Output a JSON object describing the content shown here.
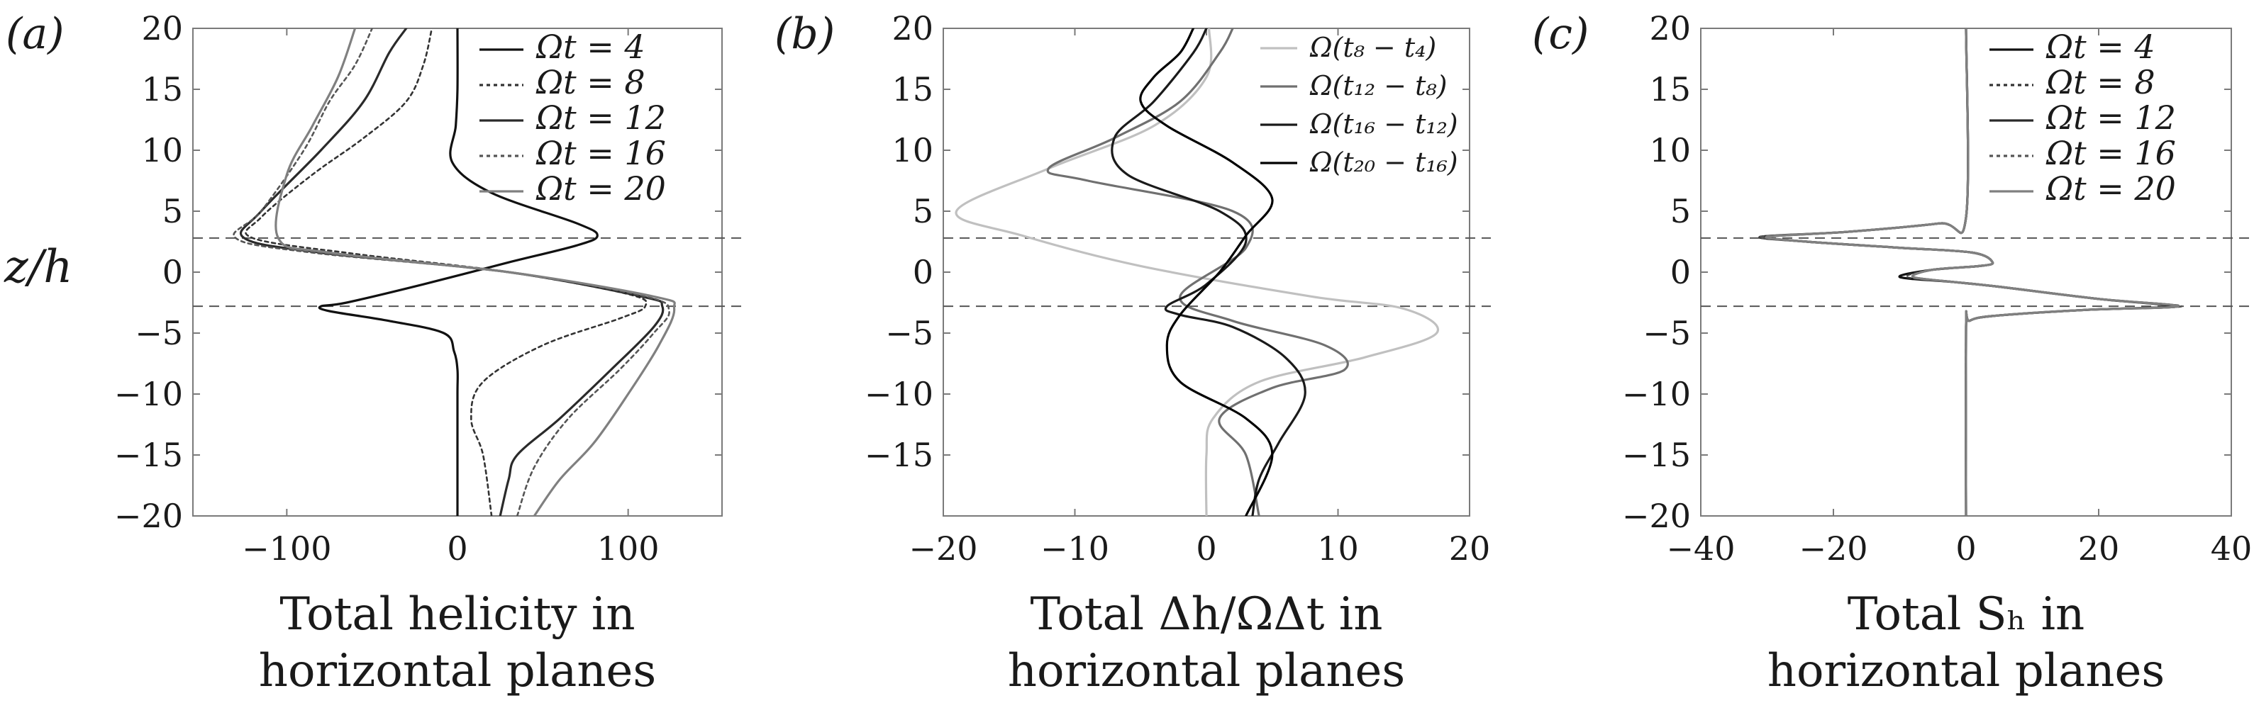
{
  "figure": {
    "ylabel": "z/h",
    "dashed_lines_y": [
      2.8,
      -2.8
    ]
  },
  "chart_data": [
    {
      "type": "line",
      "panel_label": "(a)",
      "xlabel_lines": [
        "Total helicity in",
        "horizontal planes"
      ],
      "xlim": [
        -155,
        155
      ],
      "ylim": [
        -20,
        20
      ],
      "xticks": [
        -100,
        0,
        100
      ],
      "xtick_labels": [
        "−100",
        "0",
        "100"
      ],
      "yticks": [
        20,
        15,
        10,
        5,
        0,
        -5,
        -10,
        -15,
        -20
      ],
      "ytick_labels": [
        "20",
        "15",
        "10",
        "5",
        "0",
        "−5",
        "−10",
        "−15",
        "−20"
      ],
      "legend": "top-right",
      "series": [
        {
          "name": "Ωt = 4",
          "color": "#111111",
          "dash": "solid",
          "x": [
            0,
            0,
            0,
            0,
            0,
            -2,
            -8,
            -40,
            -75,
            -80,
            -65,
            -20,
            30,
            70,
            82,
            70,
            20,
            -3,
            -1,
            0,
            0
          ],
          "y": [
            -20,
            -17,
            -15,
            -10,
            -8,
            -6.5,
            -5,
            -4,
            -3.2,
            -2.8,
            -2.5,
            -1,
            0.8,
            2.2,
            3.0,
            4.0,
            6.5,
            9,
            12,
            15,
            20
          ]
        },
        {
          "name": "Ωt = 8",
          "color": "#333333",
          "dash": "dotted",
          "x": [
            20,
            15,
            8,
            15,
            50,
            95,
            110,
            100,
            30,
            -60,
            -120,
            -115,
            -85,
            -55,
            -30,
            -20,
            -15
          ],
          "y": [
            -20,
            -15,
            -12,
            -9,
            -6,
            -3.8,
            -2.8,
            -1.8,
            0,
            1.5,
            2.8,
            4.5,
            8,
            11,
            14,
            17,
            20
          ]
        },
        {
          "name": "Ωt = 12",
          "color": "#2a2a2a",
          "dash": "solid",
          "x": [
            25,
            30,
            35,
            60,
            90,
            115,
            120,
            108,
            30,
            -80,
            -125,
            -115,
            -80,
            -55,
            -40,
            -30
          ],
          "y": [
            -20,
            -17,
            -15,
            -12,
            -8,
            -4.5,
            -2.8,
            -2.0,
            0,
            1.6,
            2.8,
            5,
            10,
            14,
            18,
            20
          ]
        },
        {
          "name": "Ωt = 16",
          "color": "#555555",
          "dash": "dotted",
          "x": [
            35,
            45,
            65,
            95,
            115,
            124,
            110,
            30,
            -85,
            -130,
            -115,
            -90,
            -75,
            -60,
            -50
          ],
          "y": [
            -20,
            -16,
            -12,
            -8,
            -5,
            -3.2,
            -2.0,
            0,
            1.6,
            2.8,
            5,
            10,
            14,
            17,
            20
          ]
        },
        {
          "name": "Ωt = 20",
          "color": "#808080",
          "dash": "solid",
          "x": [
            45,
            60,
            80,
            100,
            118,
            127,
            115,
            30,
            -75,
            -105,
            -100,
            -85,
            -70,
            -60
          ],
          "y": [
            -20,
            -17,
            -14,
            -10,
            -6,
            -3.0,
            -2.0,
            0,
            1.6,
            2.8,
            8,
            12,
            16,
            20
          ]
        }
      ]
    },
    {
      "type": "line",
      "panel_label": "(b)",
      "xlabel_lines": [
        "Total Δh/ΩΔt in",
        "horizontal planes"
      ],
      "xlim": [
        -20,
        20
      ],
      "ylim": [
        -20,
        20
      ],
      "xticks": [
        -20,
        -10,
        0,
        10,
        20
      ],
      "xtick_labels": [
        "−20",
        "−10",
        "0",
        "10",
        "20"
      ],
      "yticks": [
        20,
        15,
        10,
        5,
        0,
        -5,
        -10,
        -15
      ],
      "ytick_labels": [
        "20",
        "15",
        "10",
        "5",
        "0",
        "−5",
        "−10",
        "−15"
      ],
      "y_frame_ticks": [
        -20,
        -15,
        -10,
        -5,
        0,
        5,
        10,
        15,
        20
      ],
      "legend": "top-right",
      "series": [
        {
          "name": "Ω(t₈ − t₄)",
          "color": "#c0c0c0",
          "dash": "solid",
          "x": [
            0,
            0,
            0.5,
            4,
            12,
            17.5,
            15,
            8,
            -5,
            -14,
            -19,
            -12,
            -4,
            0,
            0.2
          ],
          "y": [
            -20,
            -15,
            -12,
            -9,
            -7,
            -5,
            -3,
            -2,
            0.5,
            3,
            5,
            8.5,
            12,
            16,
            20
          ]
        },
        {
          "name": "Ω(t₁₂ − t₈)",
          "color": "#707070",
          "dash": "solid",
          "x": [
            4,
            3,
            1,
            5,
            10.5,
            9,
            2,
            -2,
            3,
            2,
            -9,
            -12,
            -7,
            -2,
            1,
            2
          ],
          "y": [
            -20,
            -15,
            -12,
            -9.5,
            -8,
            -6,
            -4,
            -2,
            2,
            5,
            7.5,
            8.5,
            11,
            14,
            18,
            20
          ]
        },
        {
          "name": "Ω(t₁₆ − t₁₂)",
          "color": "#1a1a1a",
          "dash": "solid",
          "x": [
            3.5,
            4,
            5.5,
            7.5,
            6,
            2,
            -2,
            -3,
            0,
            3,
            1,
            -6,
            -7,
            -4,
            -1,
            0
          ],
          "y": [
            -20,
            -17,
            -14,
            -10,
            -7,
            -4.5,
            -3.5,
            -2.8,
            -1,
            2.5,
            5,
            8,
            11,
            14,
            18,
            20
          ]
        },
        {
          "name": "Ω(t₂₀ − t₁₆)",
          "color": "#000000",
          "dash": "solid",
          "x": [
            3,
            5,
            3,
            -2,
            -3,
            -2,
            1,
            3,
            5,
            2,
            -3,
            -5,
            -4,
            -2,
            -1
          ],
          "y": [
            -20,
            -15,
            -12,
            -9,
            -6,
            -3.5,
            0,
            3,
            6,
            9,
            12,
            14,
            16,
            18,
            20
          ]
        }
      ]
    },
    {
      "type": "line",
      "panel_label": "(c)",
      "xlabel_lines": [
        "Total Sₕ in",
        "horizontal planes"
      ],
      "xlim": [
        -40,
        40
      ],
      "ylim": [
        -20,
        20
      ],
      "xticks": [
        -40,
        -20,
        0,
        20,
        40
      ],
      "xtick_labels": [
        "−40",
        "−20",
        "0",
        "20",
        "40"
      ],
      "yticks": [
        20,
        15,
        10,
        5,
        0,
        -5,
        -10,
        -15,
        -20
      ],
      "ytick_labels": [
        "20",
        "15",
        "10",
        "5",
        "0",
        "−5",
        "−10",
        "−15",
        "−20"
      ],
      "legend": "top-right",
      "series": [
        {
          "name": "Ωt = 4",
          "color": "#111111",
          "dash": "solid",
          "x": [
            0,
            0,
            0.5,
            4,
            18,
            31,
            20,
            5,
            -2,
            -10,
            -5,
            2,
            4,
            1,
            -10,
            -24,
            -30,
            -18,
            -4,
            0,
            0
          ],
          "y": [
            -20,
            -4.5,
            -4,
            -3.6,
            -3.1,
            -2.8,
            -2.2,
            -1.2,
            -0.8,
            -0.4,
            0.2,
            0.5,
            0.8,
            1.6,
            2.0,
            2.5,
            2.9,
            3.3,
            4.0,
            4.5,
            20
          ]
        },
        {
          "name": "Ωt = 8",
          "color": "#333333",
          "dash": "dotted",
          "x": [
            0,
            0,
            0.5,
            4,
            18,
            32,
            20,
            5,
            -2,
            -9,
            -5,
            2,
            4,
            1,
            -10,
            -24,
            -31,
            -18,
            -4,
            0,
            0
          ],
          "y": [
            -20,
            -4.5,
            -4,
            -3.6,
            -3.1,
            -2.8,
            -2.2,
            -1.2,
            -0.8,
            -0.4,
            0.2,
            0.5,
            0.8,
            1.6,
            2.0,
            2.5,
            2.9,
            3.3,
            4.0,
            4.5,
            20
          ]
        },
        {
          "name": "Ωt = 12",
          "color": "#2a2a2a",
          "dash": "solid",
          "x": [
            0,
            0,
            0.5,
            4,
            18,
            32,
            20,
            5,
            -2,
            -8,
            -5,
            2,
            4,
            1,
            -10,
            -24,
            -31,
            -18,
            -4,
            0,
            0
          ],
          "y": [
            -20,
            -4.5,
            -4,
            -3.6,
            -3.1,
            -2.8,
            -2.2,
            -1.2,
            -0.8,
            -0.4,
            0.2,
            0.5,
            0.8,
            1.6,
            2.0,
            2.5,
            2.9,
            3.3,
            4.0,
            4.5,
            20
          ]
        },
        {
          "name": "Ωt = 16",
          "color": "#555555",
          "dash": "dotted",
          "x": [
            0,
            0,
            0.5,
            4,
            18,
            32.5,
            20,
            5,
            -2,
            -8,
            -5,
            2,
            4,
            1,
            -10,
            -24,
            -31,
            -18,
            -4,
            0,
            0
          ],
          "y": [
            -20,
            -4.5,
            -4,
            -3.6,
            -3.1,
            -2.8,
            -2.2,
            -1.2,
            -0.8,
            -0.4,
            0.2,
            0.5,
            0.8,
            1.6,
            2.0,
            2.5,
            2.9,
            3.3,
            4.0,
            4.5,
            20
          ]
        },
        {
          "name": "Ωt = 20",
          "color": "#808080",
          "dash": "solid",
          "x": [
            0,
            0,
            0.5,
            4,
            18,
            32,
            20,
            5,
            -2,
            -8,
            -5,
            2,
            4,
            1,
            -10,
            -24,
            -30,
            -18,
            -4,
            0,
            0
          ],
          "y": [
            -20,
            -4.5,
            -4,
            -3.6,
            -3.1,
            -2.8,
            -2.2,
            -1.2,
            -0.8,
            -0.4,
            0.2,
            0.5,
            0.8,
            1.6,
            2.0,
            2.5,
            2.9,
            3.3,
            4.0,
            4.5,
            20
          ]
        }
      ]
    }
  ]
}
